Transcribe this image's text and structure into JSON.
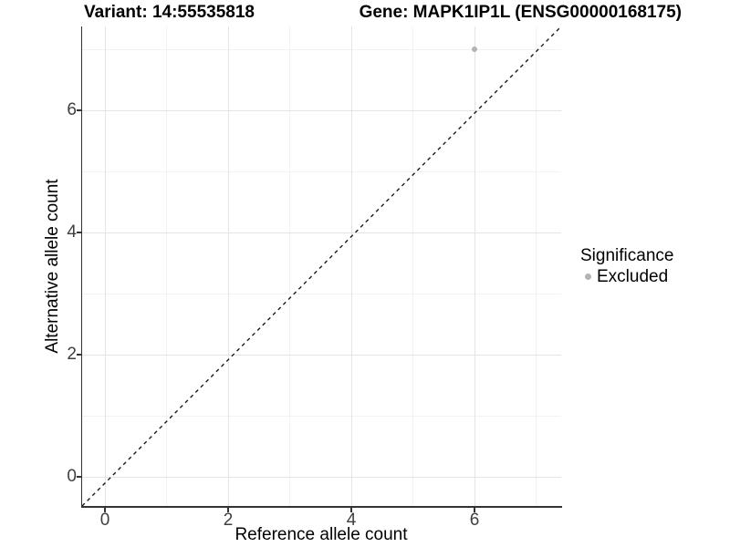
{
  "titles": {
    "variant": "Variant: 14:55535818",
    "gene": "Gene: MAPK1IP1L (ENSG00000168175)"
  },
  "axes": {
    "x_label": "Reference allele count",
    "y_label": "Alternative allele count"
  },
  "legend": {
    "title": "Significance",
    "items": [
      {
        "label": "Excluded",
        "color": "#b3b3b3"
      }
    ]
  },
  "chart_data": {
    "type": "scatter",
    "title": "Variant: 14:55535818 — Gene: MAPK1IP1L (ENSG00000168175)",
    "xlabel": "Reference allele count",
    "ylabel": "Alternative allele count",
    "x_ticks": [
      0,
      2,
      4,
      6
    ],
    "y_ticks": [
      0,
      2,
      4,
      6
    ],
    "minor_ticks": [
      1,
      3,
      5,
      7
    ],
    "xlim": [
      -0.37,
      7.41
    ],
    "ylim": [
      -0.46,
      7.41
    ],
    "grid": "white background; light grey major gridlines at even values, lighter minor gridlines at odd values",
    "legend_position": "right",
    "series": [
      {
        "name": "Excluded",
        "color": "#b3b3b3",
        "points": [
          {
            "x": 6,
            "y": 7
          }
        ]
      }
    ],
    "reference_line": {
      "kind": "identity y = x",
      "style": "dashed",
      "color": "#1a1a1a"
    }
  },
  "colors": {
    "background": "#ffffff",
    "axis_line": "#333333",
    "tick_text": "#3f3f3f",
    "grid_major": "#e4e4e4",
    "grid_minor": "#f2f2f2",
    "point": "#b3b3b3",
    "dashed_line": "#1a1a1a"
  }
}
